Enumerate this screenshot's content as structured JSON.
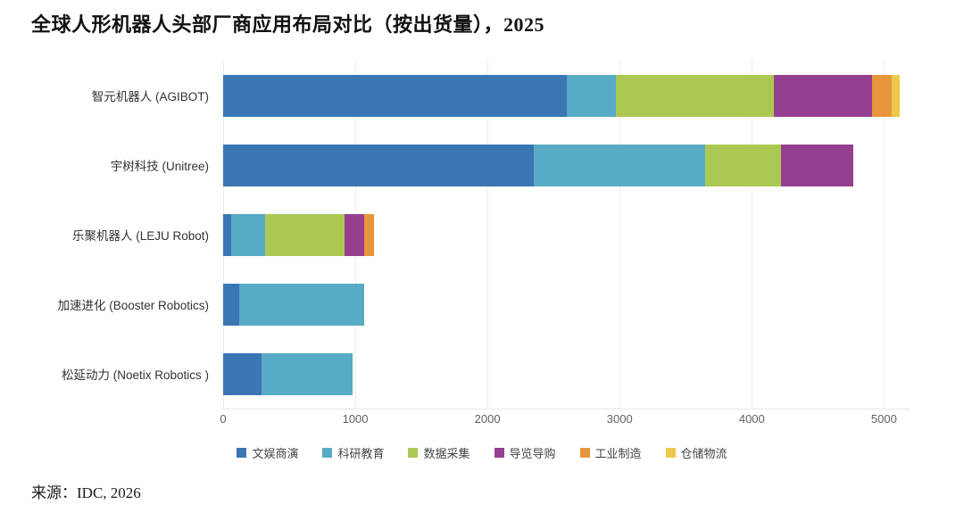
{
  "title": "全球人形机器人头部厂商应用布局对比（按出货量），2025",
  "source": "来源：IDC, 2026",
  "chart_data": {
    "type": "bar",
    "orientation": "horizontal",
    "stacked": true,
    "title": "全球人形机器人头部厂商应用布局对比（按出货量），2025",
    "xlabel": "",
    "ylabel": "",
    "xlim": [
      0,
      5200
    ],
    "x_ticks": [
      0,
      1000,
      2000,
      3000,
      4000,
      5000
    ],
    "grid": true,
    "legend_position": "bottom",
    "categories": [
      "智元机器人 (AGIBOT)",
      "宇树科技 (Unitree)",
      "乐聚机器人 (LEJU Robot)",
      "加速进化 (Booster Robotics)",
      "松延动力 (Noetix Robotics )"
    ],
    "series": [
      {
        "name": "文娱商演",
        "color": "#3b76b4",
        "values": [
          2600,
          2350,
          60,
          120,
          290
        ]
      },
      {
        "name": "科研教育",
        "color": "#57abc4",
        "values": [
          370,
          1300,
          260,
          950,
          690
        ]
      },
      {
        "name": "数据采集",
        "color": "#abc952",
        "values": [
          1200,
          570,
          600,
          0,
          0
        ]
      },
      {
        "name": "导览导购",
        "color": "#963f90",
        "values": [
          740,
          550,
          150,
          0,
          0
        ]
      },
      {
        "name": "工业制造",
        "color": "#e8963c",
        "values": [
          150,
          0,
          70,
          0,
          0
        ]
      },
      {
        "name": "仓储物流",
        "color": "#edc94b",
        "values": [
          60,
          0,
          0,
          0,
          0
        ]
      }
    ]
  }
}
